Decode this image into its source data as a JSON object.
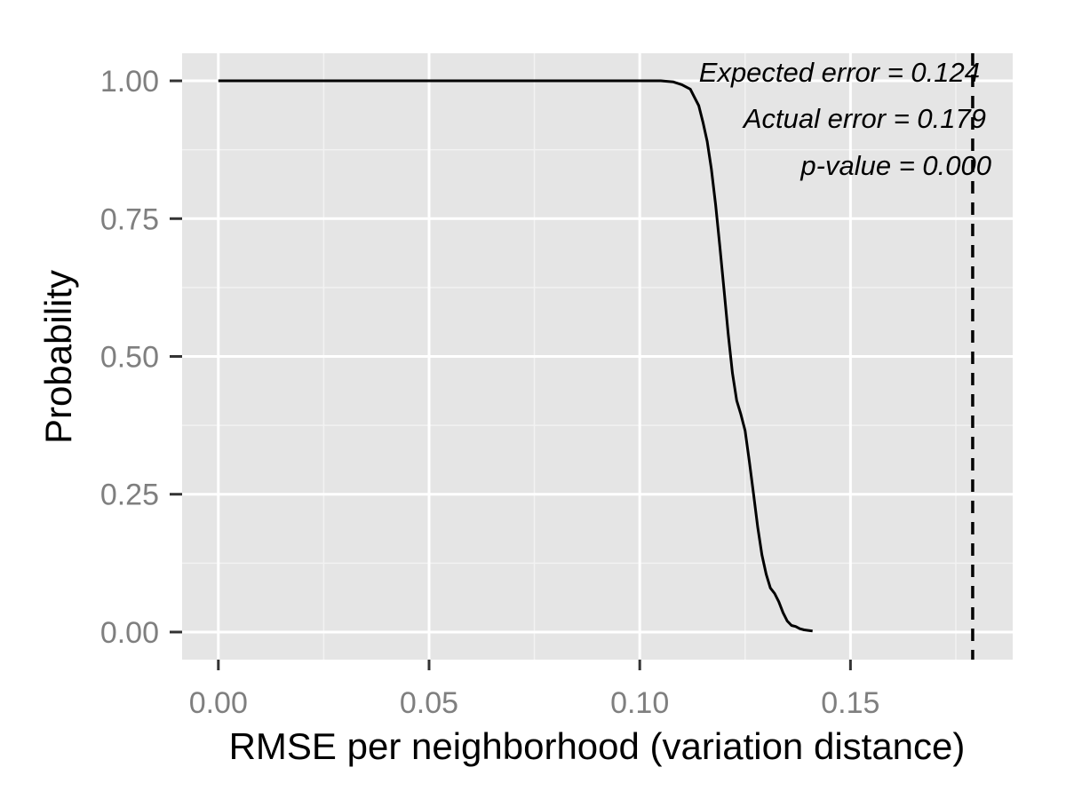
{
  "chart_data": {
    "type": "line",
    "title": "",
    "xlabel": "RMSE per neighborhood (variation distance)",
    "ylabel": "Probability",
    "xlim": [
      -0.0086,
      0.1885
    ],
    "ylim": [
      -0.05,
      1.05
    ],
    "x_ticks": [
      0.0,
      0.05,
      0.1,
      0.15
    ],
    "x_tick_labels": [
      "0.00",
      "0.05",
      "0.10",
      "0.15"
    ],
    "y_ticks": [
      0.0,
      0.25,
      0.5,
      0.75,
      1.0
    ],
    "y_tick_labels": [
      "0.00",
      "0.25",
      "0.50",
      "0.75",
      "1.00"
    ],
    "grid": true,
    "series": [
      {
        "x": [
          0.0,
          0.1,
          0.105,
          0.108,
          0.11,
          0.112,
          0.113,
          0.114,
          0.115,
          0.116,
          0.117,
          0.118,
          0.119,
          0.12,
          0.121,
          0.122,
          0.123,
          0.124,
          0.125,
          0.126,
          0.127,
          0.128,
          0.129,
          0.13,
          0.131,
          0.132,
          0.133,
          0.134,
          0.135,
          0.136,
          0.137,
          0.138,
          0.139,
          0.14,
          0.141
        ],
        "y": [
          1.0,
          1.0,
          1.0,
          0.998,
          0.993,
          0.985,
          0.97,
          0.955,
          0.925,
          0.89,
          0.84,
          0.775,
          0.7,
          0.62,
          0.54,
          0.47,
          0.42,
          0.395,
          0.365,
          0.31,
          0.25,
          0.19,
          0.14,
          0.105,
          0.08,
          0.07,
          0.055,
          0.035,
          0.02,
          0.012,
          0.01,
          0.006,
          0.004,
          0.003,
          0.002
        ],
        "color": "#000000"
      }
    ],
    "reference_line": {
      "x": 0.179,
      "style": "dashed",
      "color": "#000000"
    },
    "annotations": [
      {
        "text": "Expected error = 0.124"
      },
      {
        "text": "Actual error = 0.179"
      },
      {
        "text": "p-value = 0.000"
      }
    ],
    "colors": {
      "panel_background": "#e5e5e5",
      "grid_major": "#ffffff",
      "grid_minor": "#f2f2f2",
      "tick_text": "#7f7f7f"
    }
  }
}
